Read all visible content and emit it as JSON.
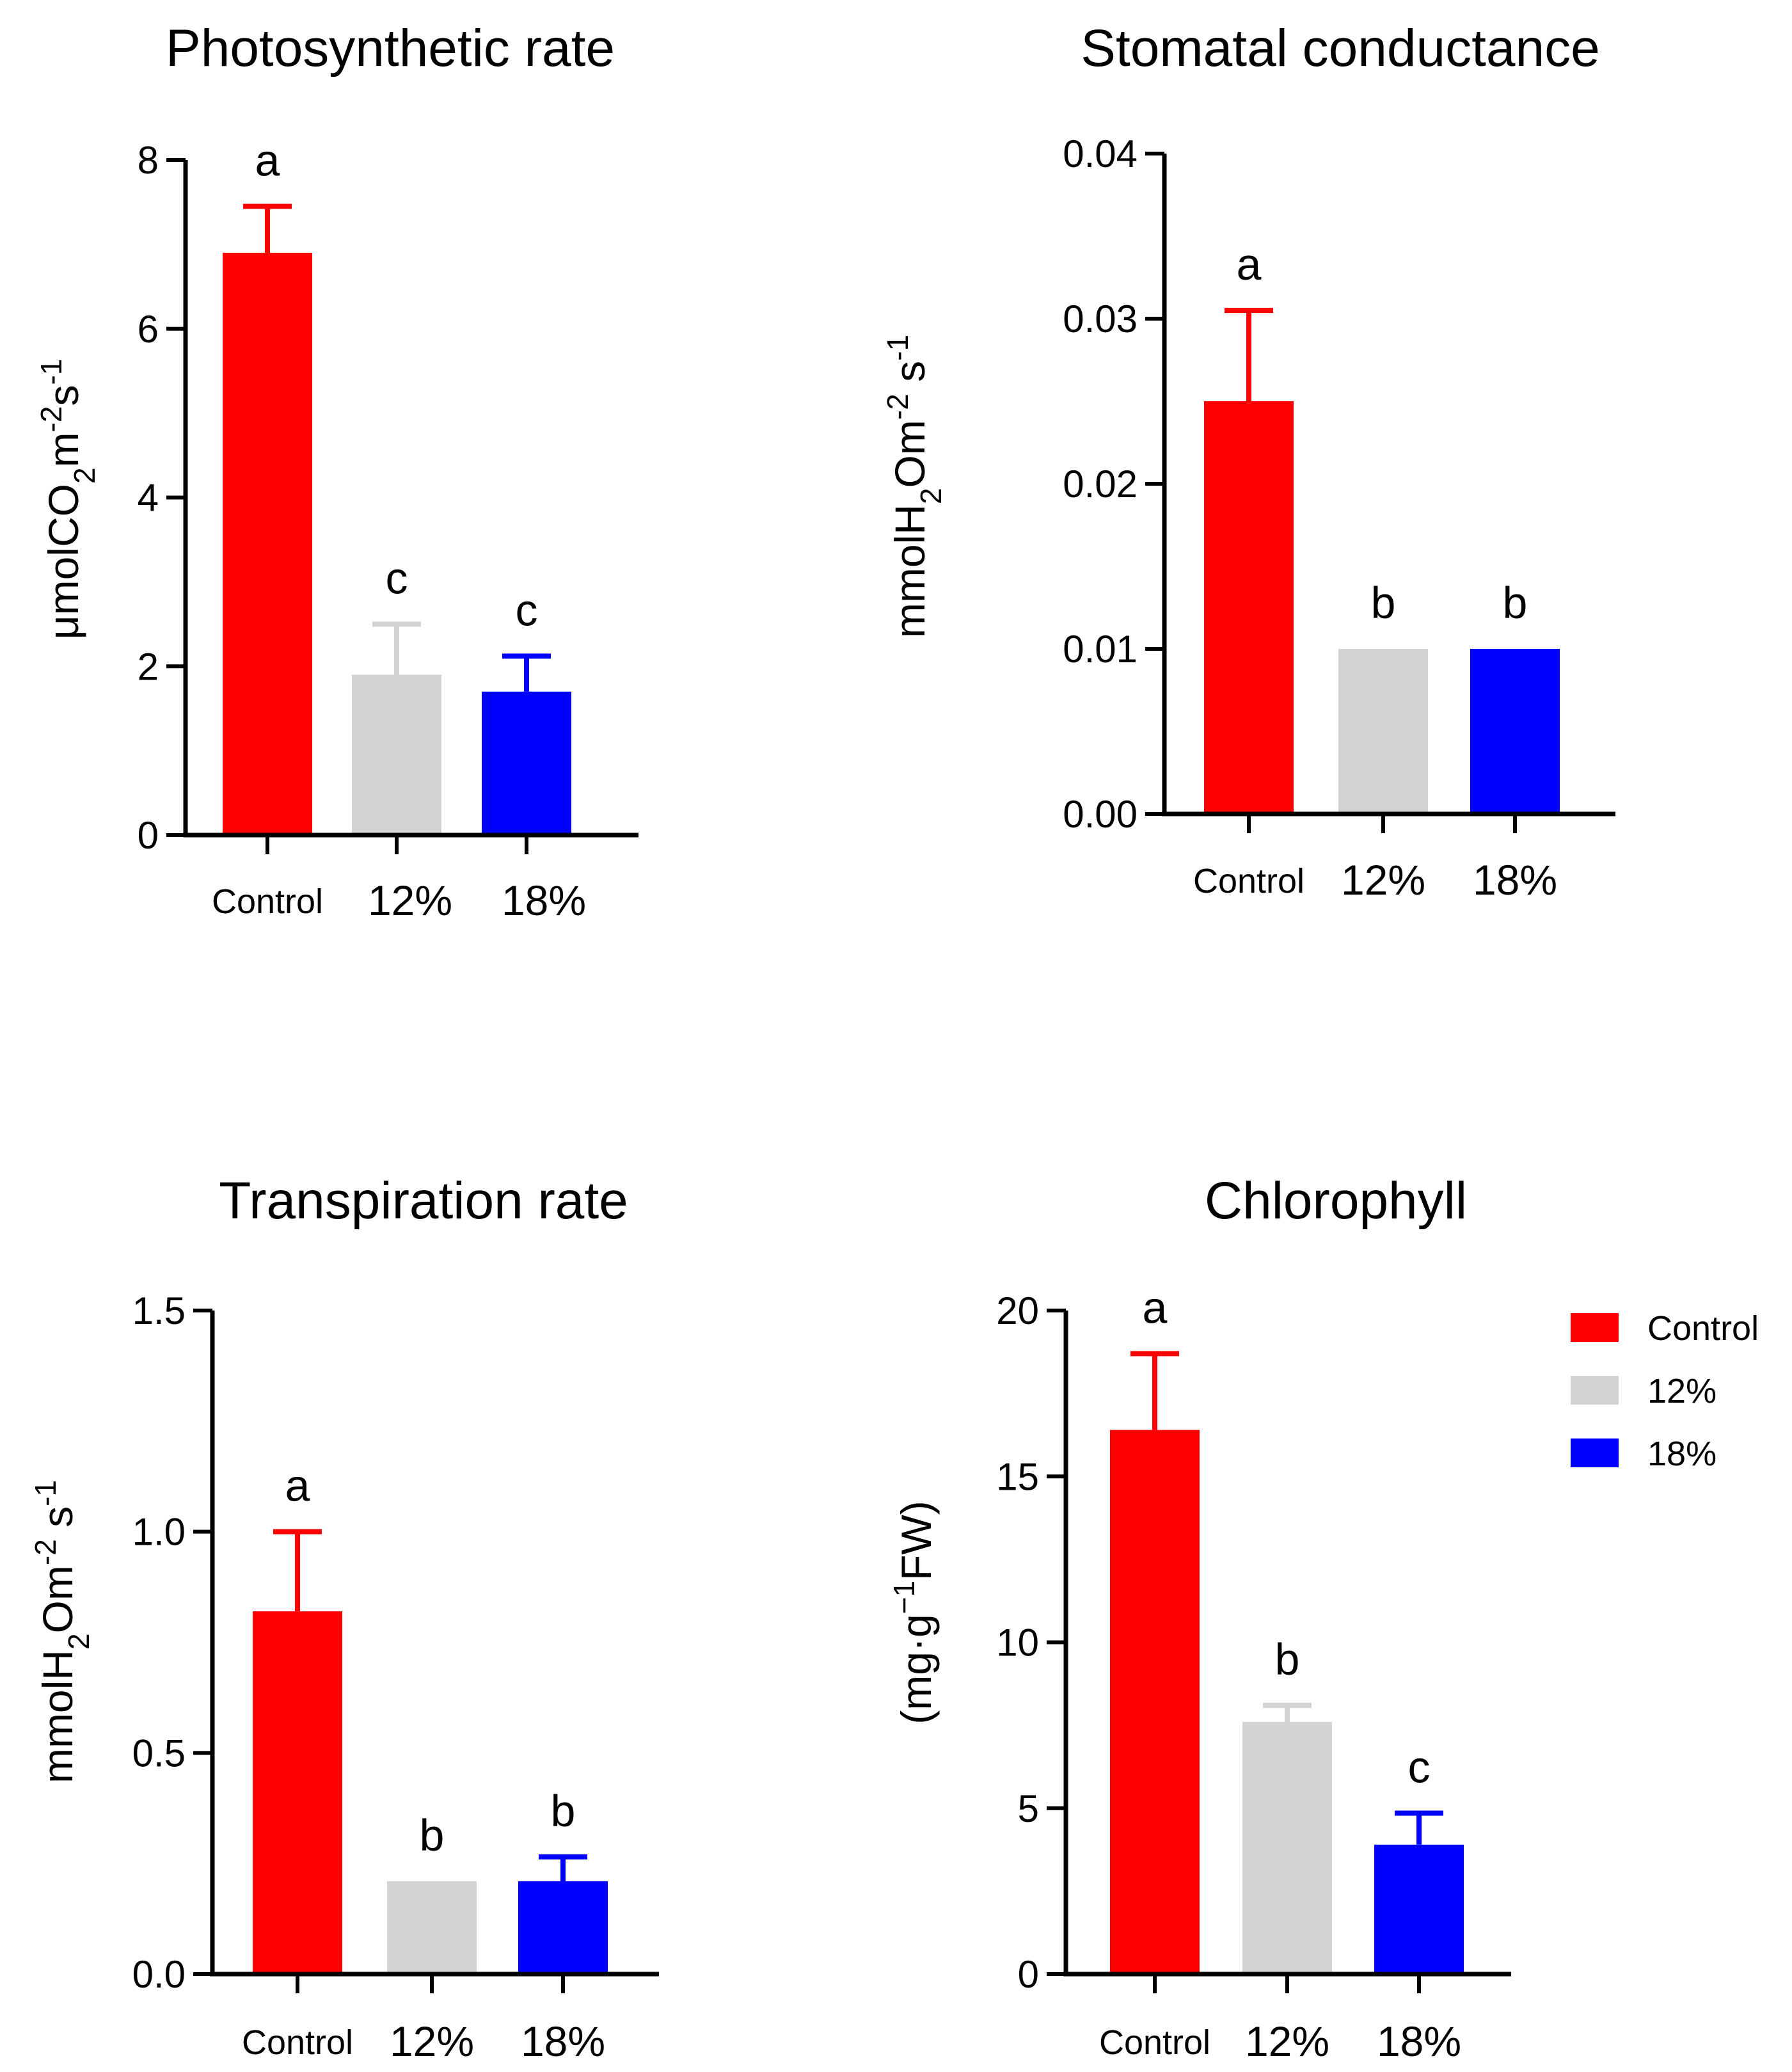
{
  "chart_data": [
    {
      "type": "bar",
      "title": "Photosynthetic rate",
      "categories": [
        "Control",
        "12%",
        "18%"
      ],
      "values": [
        6.9,
        1.9,
        1.7
      ],
      "errors": [
        0.55,
        0.6,
        0.42
      ],
      "letters": [
        "a",
        "c",
        "c"
      ],
      "ylim": [
        0,
        8
      ],
      "yticks": [
        "0",
        "2",
        "4",
        "6",
        "8"
      ],
      "ylabel": {
        "t1": "μmolCO",
        "s1": "2",
        "t2": "m",
        "p1": "-2",
        "t3": "s",
        "p2": "-1"
      }
    },
    {
      "type": "bar",
      "title": "Stomatal conductance",
      "categories": [
        "Control",
        "12%",
        "18%"
      ],
      "values": [
        0.025,
        0.01,
        0.01
      ],
      "errors": [
        0.0055,
        0,
        0
      ],
      "letters": [
        "a",
        "b",
        "b"
      ],
      "ylim": [
        0,
        0.04
      ],
      "yticks": [
        "0.00",
        "0.01",
        "0.02",
        "0.03",
        "0.04"
      ],
      "ylabel": {
        "t1": "mmolH",
        "s1": "2",
        "t2": "Om",
        "p1": "-2",
        "t3": " s",
        "p2": "-1"
      }
    },
    {
      "type": "bar",
      "title": "Transpiration rate",
      "categories": [
        "Control",
        "12%",
        "18%"
      ],
      "values": [
        0.82,
        0.21,
        0.21
      ],
      "errors": [
        0.18,
        0,
        0.055
      ],
      "letters": [
        "a",
        "b",
        "b"
      ],
      "ylim": [
        0,
        1.5
      ],
      "yticks": [
        "0.0",
        "0.5",
        "1.0",
        "1.5"
      ],
      "ylabel": {
        "t1": "mmolH",
        "s1": "2",
        "t2": "Om",
        "p1": "-2",
        "t3": " s",
        "p2": "-1"
      }
    },
    {
      "type": "bar",
      "title": "Chlorophyll",
      "categories": [
        "Control",
        "12%",
        "18%"
      ],
      "values": [
        16.4,
        7.6,
        3.9
      ],
      "errors": [
        2.3,
        0.5,
        0.95
      ],
      "letters": [
        "a",
        "b",
        "c"
      ],
      "ylim": [
        0,
        20
      ],
      "yticks": [
        "0",
        "5",
        "10",
        "15",
        "20"
      ],
      "ylabel": {
        "t1": "(mg·g",
        "s1": "",
        "t2": "",
        "p1": "−1",
        "t3": "FW)",
        "p2": ""
      }
    }
  ],
  "legend": {
    "placement": "right",
    "items": [
      {
        "label": "Control",
        "color": "#ff0000"
      },
      {
        "label": "12%",
        "color": "#d3d3d3"
      },
      {
        "label": "18%",
        "color": "#0000ff"
      }
    ]
  },
  "colors": [
    "#ff0000",
    "#d3d3d3",
    "#0000ff"
  ]
}
